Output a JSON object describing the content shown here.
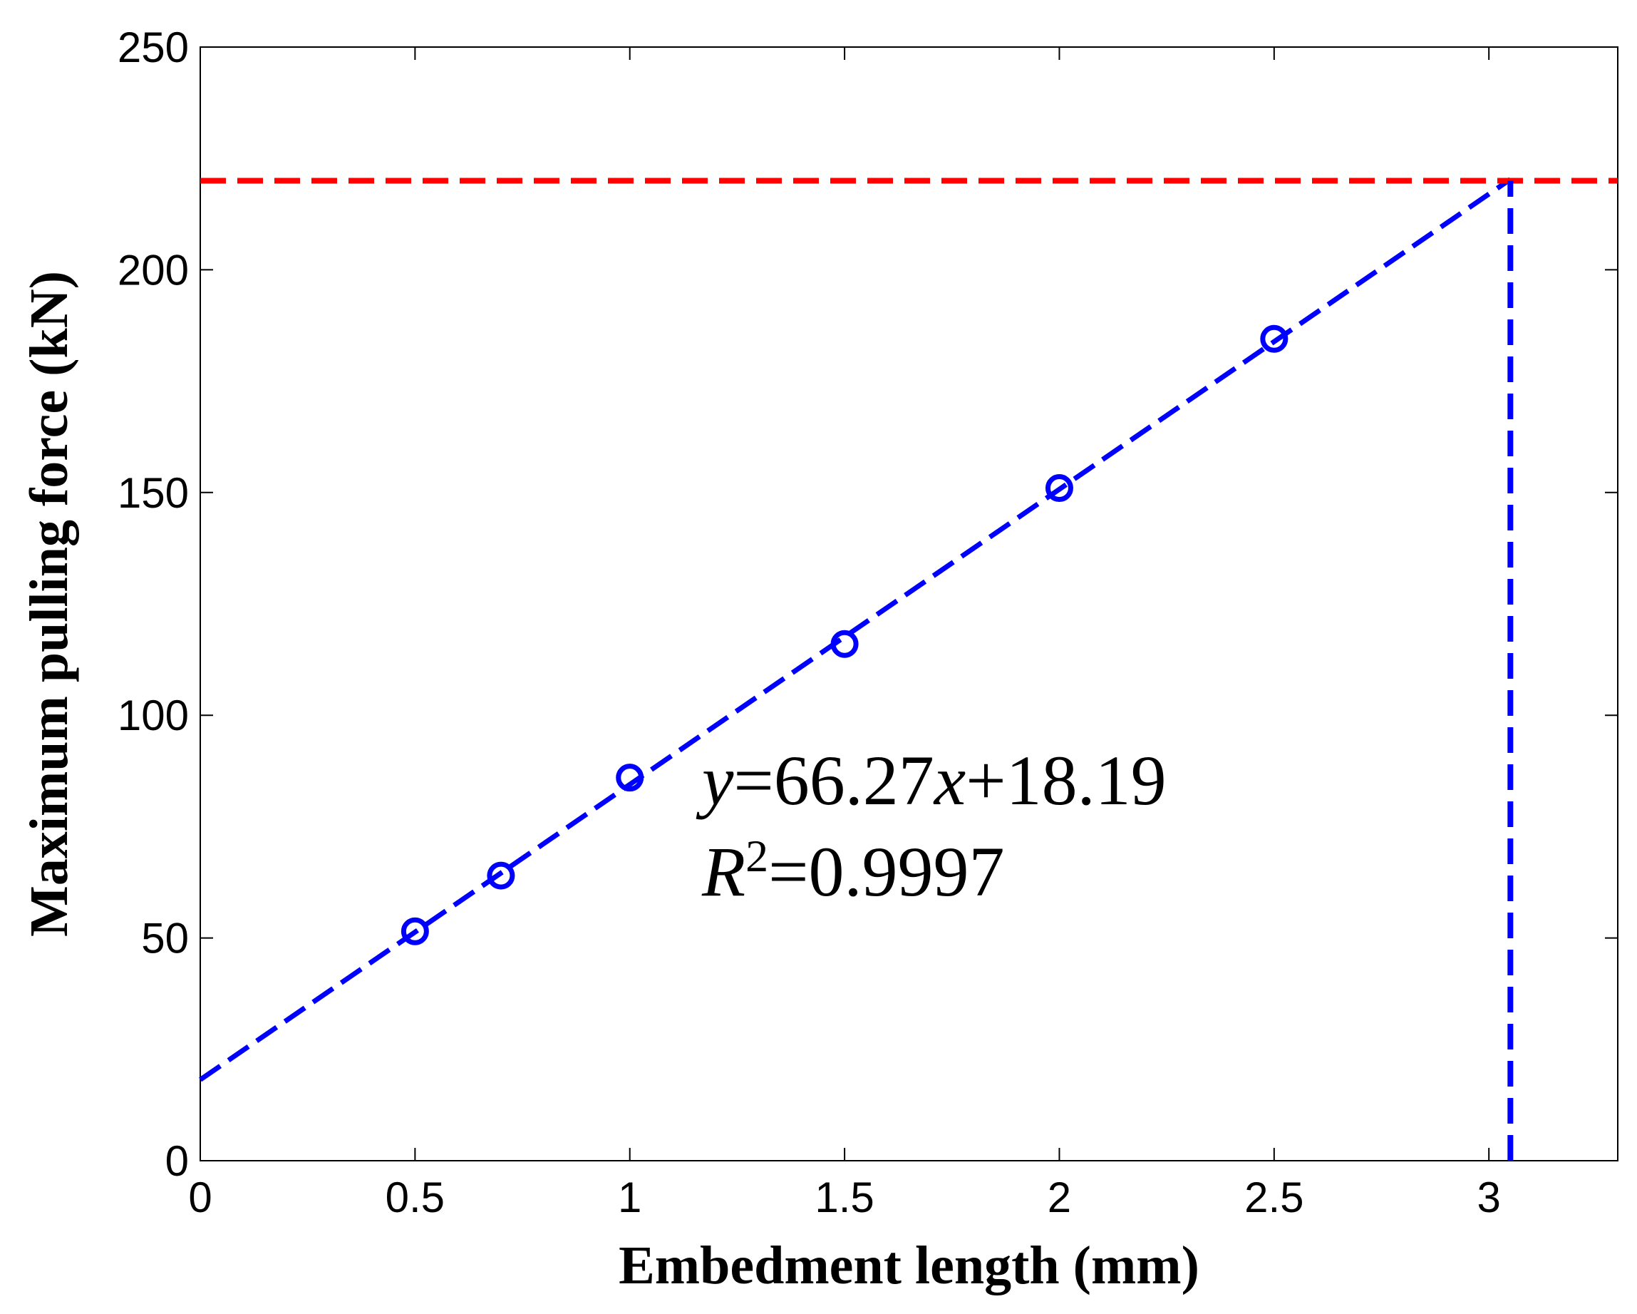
{
  "chart_data": {
    "type": "line",
    "xlabel": "Embedment length (mm)",
    "ylabel": "Maximum pulling force (kN)",
    "xlim": [
      0,
      3.3
    ],
    "ylim": [
      0,
      250
    ],
    "xticks": [
      0,
      0.5,
      1,
      1.5,
      2,
      2.5,
      3
    ],
    "xtick_labels": [
      "0",
      "0.5",
      "1",
      "1.5",
      "2",
      "2.5",
      "3"
    ],
    "yticks": [
      0,
      50,
      100,
      150,
      200,
      250
    ],
    "ytick_labels": [
      "0",
      "50",
      "100",
      "150",
      "200",
      "250"
    ],
    "grid": false,
    "series": [
      {
        "kind": "markers",
        "marker": "circle",
        "color": "#0000ff",
        "x": [
          0.5,
          0.7,
          1.0,
          1.5,
          2.0,
          2.5
        ],
        "y": [
          51.5,
          64,
          86,
          116,
          151,
          184.5
        ]
      },
      {
        "kind": "fit-line",
        "style": "dashed",
        "color": "#0000ff",
        "slope": 66.27,
        "intercept": 18.19,
        "x_range": [
          0,
          3.05
        ]
      },
      {
        "kind": "threshold-line",
        "orientation": "horizontal",
        "style": "dashed",
        "color": "#ff0000",
        "y": 220
      },
      {
        "kind": "threshold-line",
        "orientation": "vertical",
        "style": "dashed",
        "color": "#0000ff",
        "x": 3.05,
        "y_range": [
          0,
          220
        ]
      }
    ],
    "annotation": {
      "eq_y": "y",
      "eq_mid": "=66.27",
      "eq_x": "x",
      "eq_tail": "+18.19",
      "r_letter": "R",
      "r_sup": "2",
      "r_tail": "=0.9997"
    }
  }
}
